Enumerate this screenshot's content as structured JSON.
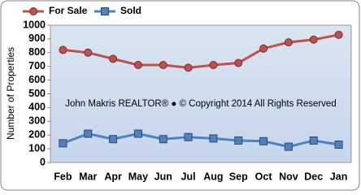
{
  "chart_data": {
    "type": "line",
    "y_label": "Number of Properties",
    "annotation": "John Makris REALTOR®  ●  © Copyright 2014 All Rights Reserved",
    "categories": [
      "Feb",
      "Mar",
      "Apr",
      "May",
      "Jun",
      "Jul",
      "Aug",
      "Sep",
      "Oct",
      "Nov",
      "Dec",
      "Jan"
    ],
    "series": [
      {
        "name": "For Sale",
        "color": "#c0504d",
        "marker": "circle",
        "values": [
          820,
          800,
          755,
          710,
          710,
          690,
          710,
          725,
          830,
          875,
          895,
          930
        ]
      },
      {
        "name": "Sold",
        "color": "#4f81bd",
        "marker": "square",
        "values": [
          140,
          210,
          170,
          210,
          170,
          185,
          175,
          160,
          155,
          115,
          160,
          130
        ]
      }
    ],
    "ylim": [
      0,
      1000
    ],
    "yticks": [
      0,
      100,
      200,
      300,
      400,
      500,
      600,
      700,
      800,
      900,
      1000
    ],
    "grid": false,
    "legend": "top"
  }
}
